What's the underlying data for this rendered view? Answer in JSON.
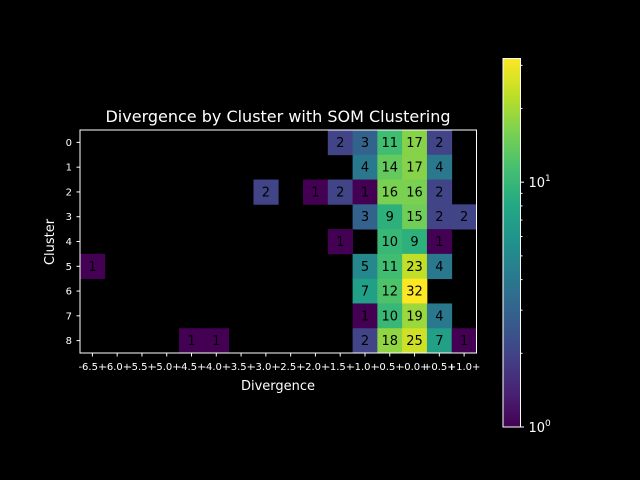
{
  "chart_data": {
    "type": "heatmap",
    "title": "Divergence by Cluster with SOM Clustering",
    "xlabel": "Divergence",
    "ylabel": "Cluster",
    "x_categories": [
      "-6.5+",
      "-6.0+",
      "-5.5+",
      "-5.0+",
      "-4.5+",
      "-4.0+",
      "-3.5+",
      "-3.0+",
      "-2.5+",
      "-2.0+",
      "-1.5+",
      "-1.0+",
      "-0.5+",
      "-0.0+",
      "+0.5+",
      "+1.0+"
    ],
    "x_tick_labels": [
      "-6.5+",
      "-6.0+",
      "-5.5+",
      "-5.0+",
      "-4.5+",
      "-4.0+",
      "-3.5+",
      "-3.0+",
      "-2.5+",
      "-2.0+",
      "-1.5+",
      "-1.0+",
      "-0.5+",
      "-0.0+",
      "+0.5+",
      "+1.0+"
    ],
    "y_categories": [
      "0",
      "1",
      "2",
      "3",
      "4",
      "5",
      "6",
      "7",
      "8"
    ],
    "values": [
      [
        null,
        null,
        null,
        null,
        null,
        null,
        null,
        null,
        null,
        null,
        2,
        3,
        11,
        17,
        2,
        null
      ],
      [
        null,
        null,
        null,
        null,
        null,
        null,
        null,
        null,
        null,
        null,
        null,
        4,
        14,
        17,
        4,
        null
      ],
      [
        null,
        null,
        null,
        null,
        null,
        null,
        null,
        2,
        null,
        1,
        2,
        1,
        16,
        16,
        2,
        null
      ],
      [
        null,
        null,
        null,
        null,
        null,
        null,
        null,
        null,
        null,
        null,
        null,
        3,
        9,
        15,
        2,
        2
      ],
      [
        null,
        null,
        null,
        null,
        null,
        null,
        null,
        null,
        null,
        null,
        1,
        null,
        10,
        9,
        1,
        null
      ],
      [
        1,
        null,
        null,
        null,
        null,
        null,
        null,
        null,
        null,
        null,
        null,
        5,
        11,
        23,
        4,
        null
      ],
      [
        null,
        null,
        null,
        null,
        null,
        null,
        null,
        null,
        null,
        null,
        null,
        7,
        12,
        32,
        null,
        null
      ],
      [
        null,
        null,
        null,
        null,
        null,
        null,
        null,
        null,
        null,
        null,
        null,
        1,
        10,
        19,
        4,
        null
      ],
      [
        null,
        null,
        null,
        null,
        1,
        1,
        null,
        null,
        null,
        null,
        null,
        2,
        18,
        25,
        7,
        1
      ]
    ],
    "colorscale": "viridis",
    "color_scale_type": "log",
    "color_range": [
      1,
      32
    ],
    "colorbar_ticks": [
      {
        "value": 1,
        "base": "10",
        "exp": "0"
      },
      {
        "value": 10,
        "base": "10",
        "exp": "1"
      }
    ],
    "background": "#000000",
    "text_color": "#ffffff",
    "cell_text_color": "#000000",
    "grid": false,
    "legend": "colorbar-right"
  }
}
